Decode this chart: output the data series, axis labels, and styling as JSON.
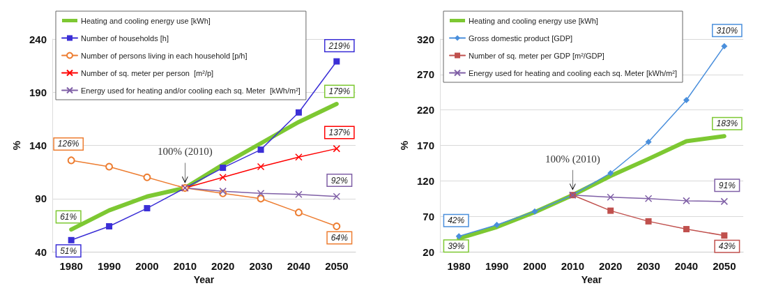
{
  "chart_data": [
    {
      "type": "line",
      "xlabel": "Year",
      "ylabel": "%",
      "categories": [
        "1980",
        "1990",
        "2000",
        "2010",
        "2020",
        "2030",
        "2040",
        "2050"
      ],
      "ylim": [
        40,
        240
      ],
      "yticks": [
        40,
        90,
        140,
        190,
        240
      ],
      "grid": "y",
      "legend": "top left",
      "series": [
        {
          "name": "Heating and cooling energy use [kWh]",
          "color": "#7dc832",
          "marker": "none",
          "values": [
            61,
            79,
            92,
            100,
            122,
            142,
            162,
            179
          ],
          "value_labels": [
            "61%",
            null,
            null,
            null,
            null,
            null,
            null,
            "179%"
          ]
        },
        {
          "name": "Number of households [h]",
          "color": "#3b2fd6",
          "marker": "square",
          "values": [
            51,
            64,
            81,
            100,
            119,
            136,
            171,
            219
          ],
          "value_labels": [
            "51%",
            null,
            null,
            null,
            null,
            null,
            null,
            "219%"
          ]
        },
        {
          "name": "Number of persons living in each household [p/h]",
          "color": "#ed7d31",
          "marker": "circle",
          "values": [
            126,
            120,
            110,
            100,
            95,
            90,
            77,
            64
          ],
          "value_labels": [
            "126%",
            null,
            null,
            null,
            null,
            null,
            null,
            "64%"
          ]
        },
        {
          "name": "Number of sq. meter per person  [m²/p]",
          "color": "#ff0000",
          "marker": "cross",
          "values": [
            null,
            null,
            null,
            100,
            110,
            120,
            129,
            137
          ],
          "value_labels": [
            null,
            null,
            null,
            null,
            null,
            null,
            null,
            "137%"
          ]
        },
        {
          "name": "Energy used for heating and/or cooling each sq. Meter  [kWh/m²]",
          "color": "#7f5fa6",
          "marker": "cross",
          "values": [
            null,
            null,
            null,
            100,
            97,
            95,
            94,
            92
          ],
          "value_labels": [
            null,
            null,
            null,
            null,
            null,
            null,
            null,
            "92%"
          ]
        }
      ],
      "annotations": [
        {
          "text": "100% (2010)",
          "x": "2010",
          "y": 100
        }
      ]
    },
    {
      "type": "line",
      "xlabel": "Year",
      "ylabel": "%",
      "categories": [
        "1980",
        "1990",
        "2000",
        "2010",
        "2020",
        "2030",
        "2040",
        "2050"
      ],
      "ylim": [
        20,
        320
      ],
      "yticks": [
        20,
        70,
        120,
        170,
        220,
        270,
        320
      ],
      "grid": "y",
      "legend": "top left",
      "series": [
        {
          "name": "Heating and cooling energy use [kWh]",
          "color": "#7dc832",
          "marker": "none",
          "values": [
            39,
            55,
            76,
            100,
            127,
            151,
            176,
            183
          ],
          "value_labels": [
            "39%",
            null,
            null,
            null,
            null,
            null,
            null,
            "183%"
          ]
        },
        {
          "name": "Gross domestic product [GDP]",
          "color": "#4a8fdc",
          "marker": "diamond",
          "values": [
            42,
            58,
            77,
            100,
            131,
            175,
            234,
            310
          ],
          "value_labels": [
            "42%",
            null,
            null,
            null,
            null,
            null,
            null,
            "310%"
          ]
        },
        {
          "name": "Number of sq. meter per GDP [m²/GDP]",
          "color": "#c0504d",
          "marker": "square",
          "values": [
            null,
            null,
            null,
            100,
            78,
            63,
            52,
            43
          ],
          "value_labels": [
            null,
            null,
            null,
            null,
            null,
            null,
            null,
            "43%"
          ]
        },
        {
          "name": "Energy used for heating and cooling each sq. Meter [kWh/m²]",
          "color": "#7f5fa6",
          "marker": "cross",
          "values": [
            null,
            null,
            null,
            100,
            97,
            95,
            92,
            91
          ],
          "value_labels": [
            null,
            null,
            null,
            null,
            null,
            null,
            null,
            "91%"
          ]
        }
      ],
      "annotations": [
        {
          "text": "100% (2010)",
          "x": "2010",
          "y": 100
        }
      ]
    }
  ]
}
